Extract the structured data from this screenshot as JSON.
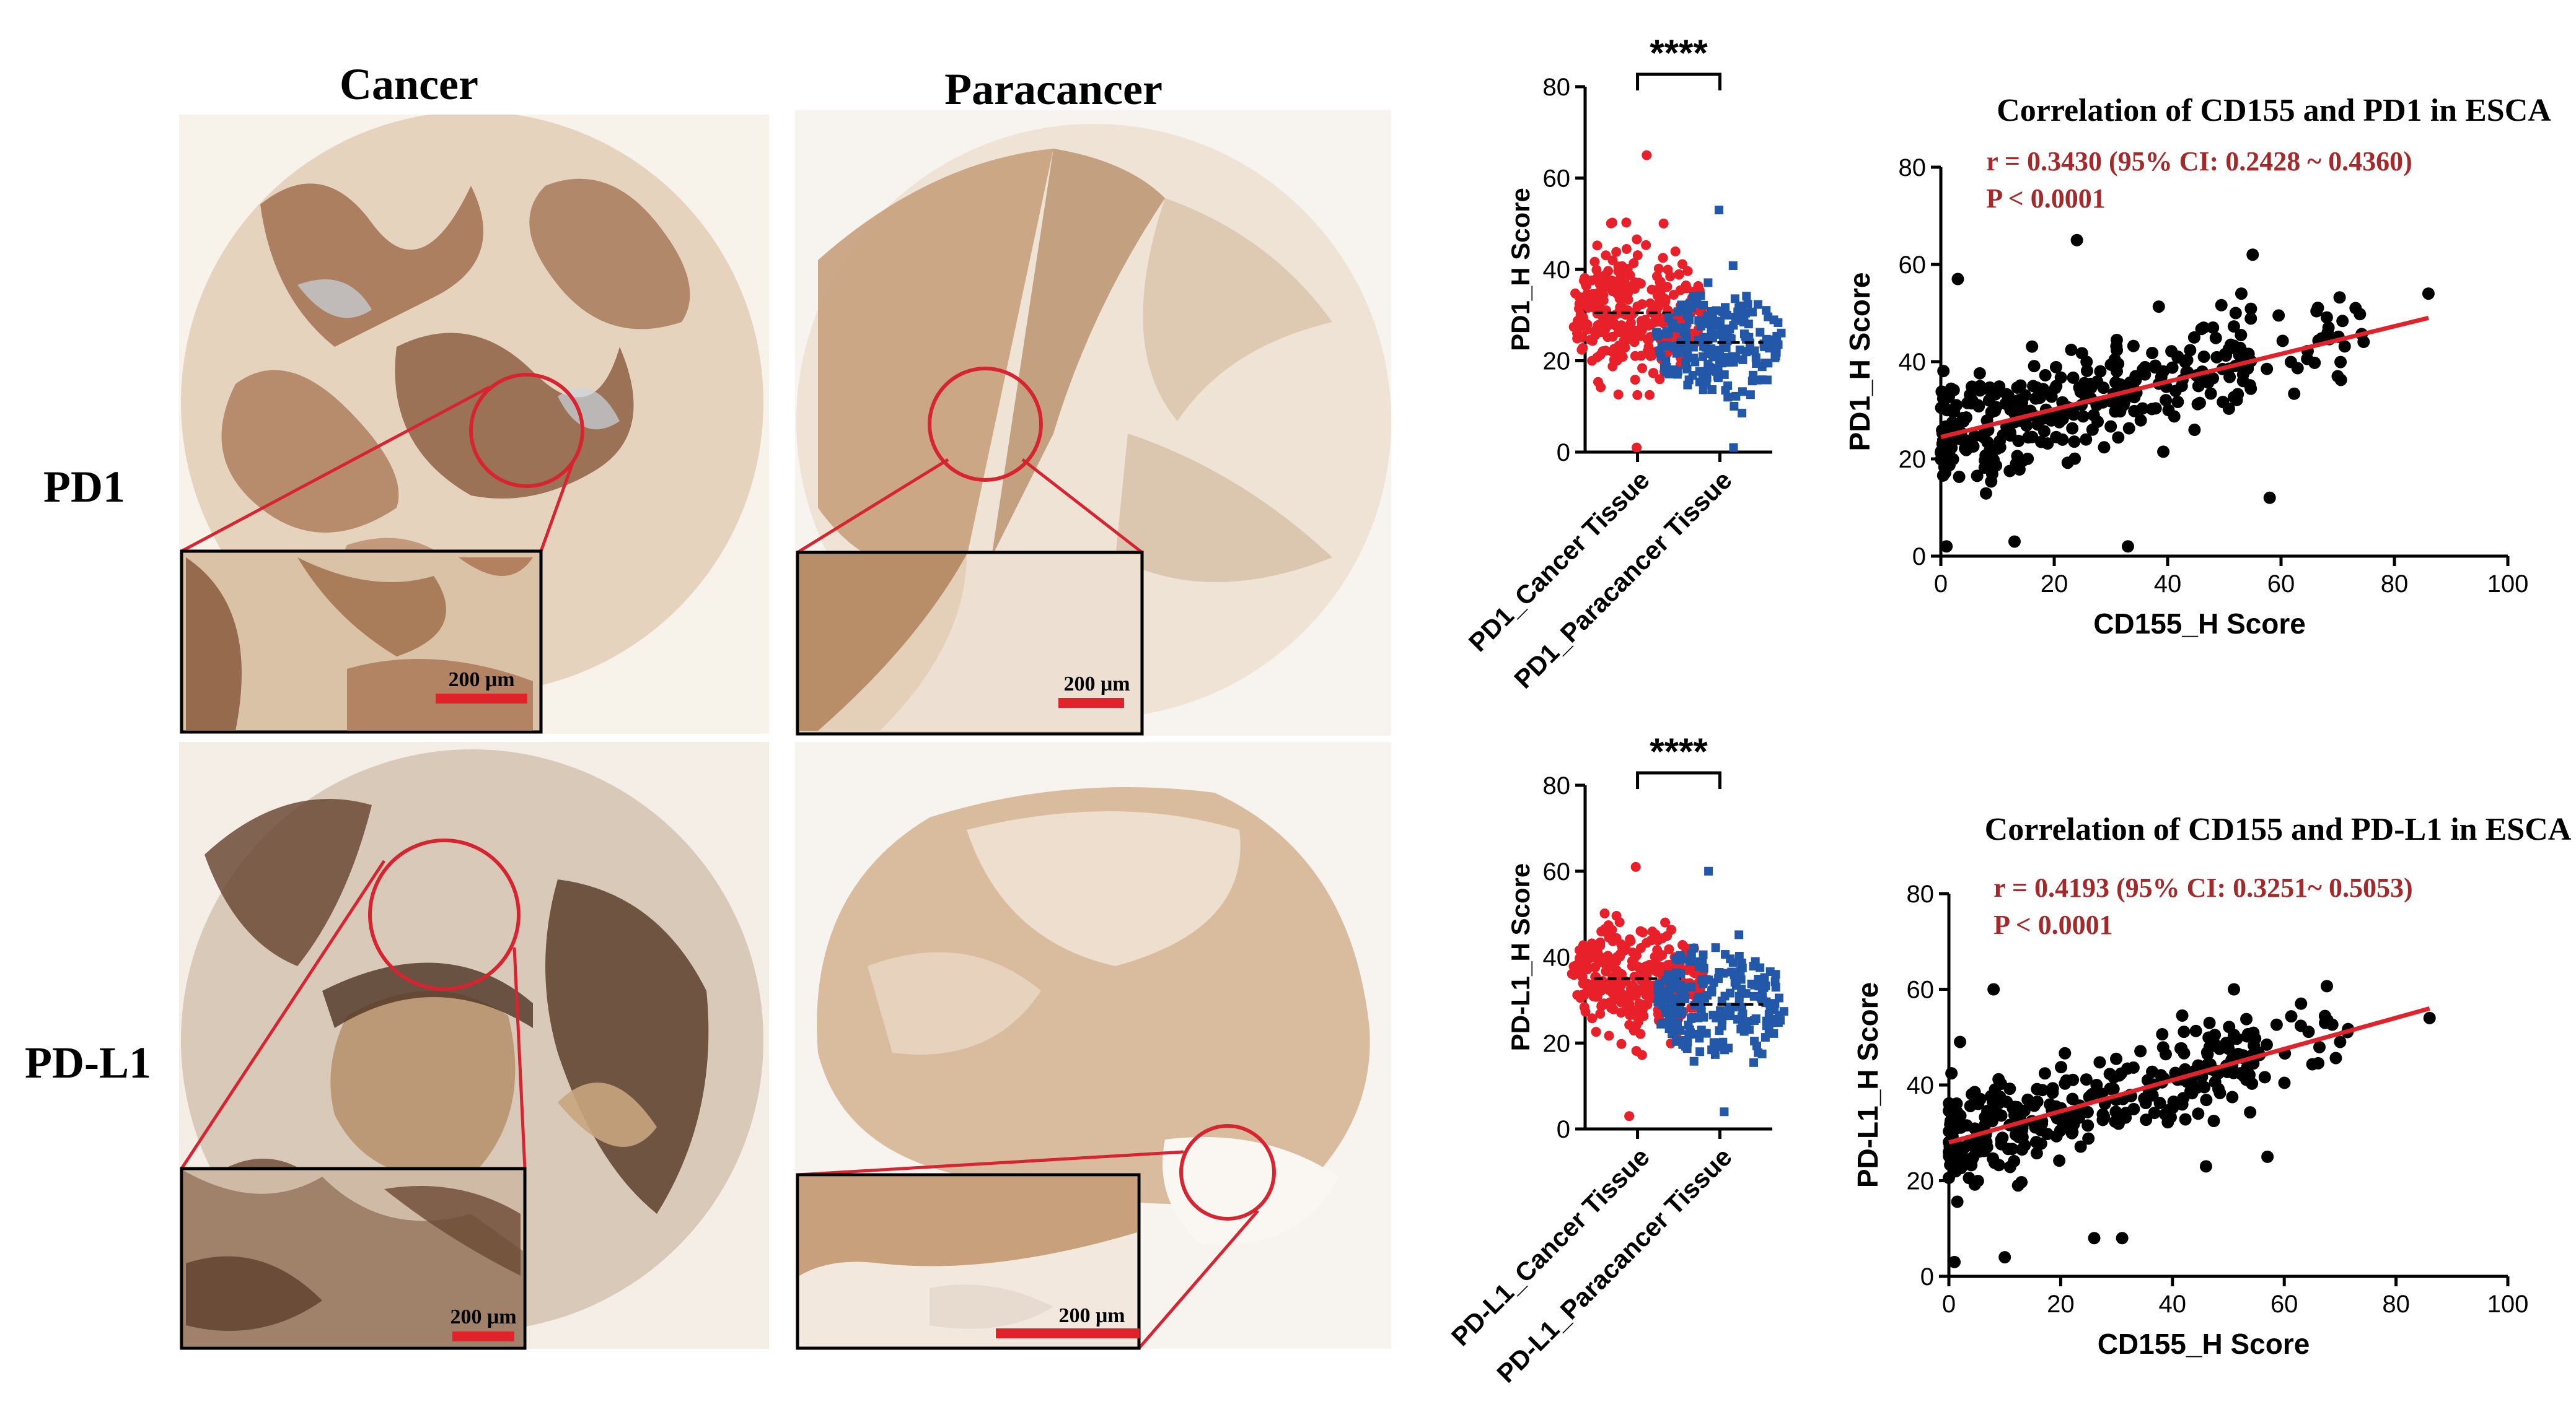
{
  "columns": {
    "cancer": "Cancer",
    "paracancer": "Paracancer"
  },
  "rows": {
    "pd1": "PD1",
    "pdl1": "PD-L1"
  },
  "scalebar_label": "200 μm",
  "colors": {
    "cancer": "#e8202a",
    "paracancer": "#2357a8",
    "fit_line": "#e0232b",
    "annotation": "#a32a2a",
    "circle": "#d62531",
    "tissue_dark": "#8a5a3c",
    "tissue_light": "#e8d7c4"
  },
  "chart_data": [
    {
      "type": "scatter",
      "subtype": "dot-plot",
      "categories": [
        "PD1_Cancer Tissue",
        "PD1_Paracancer Tissue"
      ],
      "ylabel": "PD1_H Score",
      "ylim": [
        0,
        80
      ],
      "yticks": [
        0,
        20,
        40,
        60,
        80
      ],
      "means": [
        30.5,
        24
      ],
      "significance": "****",
      "ranges": [
        [
          1,
          65
        ],
        [
          1,
          53
        ]
      ],
      "series": [
        {
          "category": "PD1_Cancer Tissue",
          "color": "#e8202a",
          "marker": "circle"
        },
        {
          "category": "PD1_Paracancer Tissue",
          "color": "#2357a8",
          "marker": "square"
        }
      ]
    },
    {
      "type": "scatter",
      "subtype": "dot-plot",
      "categories": [
        "PD-L1_Cancer Tissue",
        "PD-L1_Paracancer Tissue"
      ],
      "ylabel": "PD-L1_H Score",
      "ylim": [
        0,
        80
      ],
      "yticks": [
        0,
        20,
        40,
        60,
        80
      ],
      "means": [
        35,
        29
      ],
      "significance": "****",
      "ranges": [
        [
          3,
          61
        ],
        [
          4,
          60
        ]
      ],
      "series": [
        {
          "category": "PD-L1_Cancer Tissue",
          "color": "#e8202a",
          "marker": "circle"
        },
        {
          "category": "PD-L1_Paracancer Tissue",
          "color": "#2357a8",
          "marker": "square"
        }
      ]
    },
    {
      "type": "scatter",
      "title": "Correlation of CD155 and PD1 in ESCA",
      "xlabel": "CD155_H Score",
      "ylabel": "PD1_H Score",
      "xlim": [
        0,
        100
      ],
      "ylim": [
        0,
        80
      ],
      "xticks": [
        0,
        20,
        40,
        60,
        80,
        100
      ],
      "yticks": [
        0,
        20,
        40,
        60,
        80
      ],
      "stat_r": "r = 0.3430 (95% CI: 0.2428 ~ 0.4360)",
      "stat_p": "P < 0.0001",
      "fit": {
        "x": [
          0,
          86
        ],
        "y": [
          24.5,
          49
        ]
      },
      "points": [
        [
          86,
          54
        ],
        [
          70,
          37
        ],
        [
          58,
          12
        ],
        [
          55,
          62
        ],
        [
          53,
          54
        ],
        [
          52,
          50
        ],
        [
          48,
          47
        ],
        [
          24,
          65
        ],
        [
          1,
          2
        ],
        [
          13,
          3
        ],
        [
          33,
          2
        ],
        [
          3,
          57
        ]
      ]
    },
    {
      "type": "scatter",
      "title": "Correlation of CD155 and PD-L1 in ESCA",
      "xlabel": "CD155_H Score",
      "ylabel": "PD-L1_H Score",
      "xlim": [
        0,
        100
      ],
      "ylim": [
        0,
        80
      ],
      "xticks": [
        0,
        20,
        40,
        60,
        80,
        100
      ],
      "yticks": [
        0,
        20,
        40,
        60,
        80
      ],
      "stat_r": "r = 0.4193 (95% CI: 0.3251~ 0.5053)",
      "stat_p": "P < 0.0001",
      "fit": {
        "x": [
          0,
          86
        ],
        "y": [
          28,
          56
        ]
      },
      "points": [
        [
          86,
          54
        ],
        [
          70,
          49
        ],
        [
          57,
          25
        ],
        [
          51,
          60
        ],
        [
          63,
          57
        ],
        [
          46,
          23
        ],
        [
          8,
          60
        ],
        [
          1,
          3
        ],
        [
          10,
          4
        ],
        [
          26,
          8
        ],
        [
          31,
          8
        ],
        [
          2,
          49
        ]
      ]
    }
  ]
}
